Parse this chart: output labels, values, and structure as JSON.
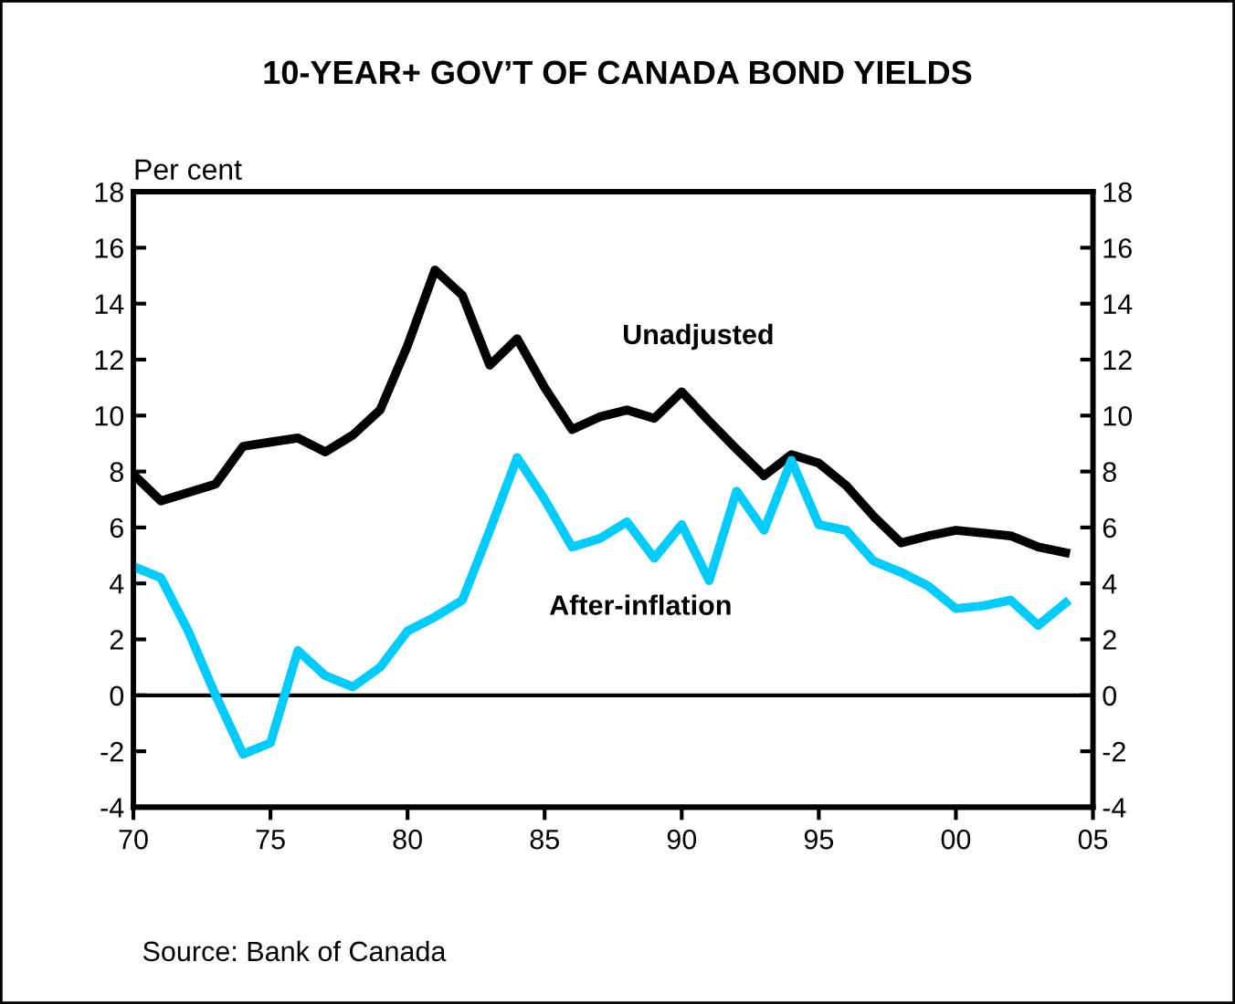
{
  "chart_data": {
    "type": "line",
    "title": "10-YEAR+ GOV’T OF CANADA BOND YIELDS",
    "ylabel": "Per cent",
    "x": [
      1970,
      1971,
      1972,
      1973,
      1974,
      1975,
      1976,
      1977,
      1978,
      1979,
      1980,
      1981,
      1982,
      1983,
      1984,
      1985,
      1986,
      1987,
      1988,
      1989,
      1990,
      1991,
      1992,
      1993,
      1994,
      1995,
      1996,
      1997,
      1998,
      1999,
      2000,
      2001,
      2002,
      2003,
      2004
    ],
    "series": [
      {
        "name": "Unadjusted",
        "color": "#000000",
        "values": [
          7.9,
          6.95,
          7.25,
          7.55,
          8.9,
          9.05,
          9.2,
          8.7,
          9.3,
          10.2,
          12.5,
          15.2,
          14.3,
          11.8,
          12.75,
          11.0,
          9.5,
          9.95,
          10.2,
          9.9,
          10.85,
          9.8,
          8.8,
          7.85,
          8.6,
          8.3,
          7.5,
          6.4,
          5.45,
          5.7,
          5.9,
          5.8,
          5.7,
          5.3,
          5.1
        ]
      },
      {
        "name": "After-inflation",
        "color": "#00ccff",
        "values": [
          4.6,
          4.2,
          2.3,
          0.0,
          -2.1,
          -1.7,
          1.6,
          0.7,
          0.3,
          1.0,
          2.3,
          2.8,
          3.4,
          5.9,
          8.5,
          7.0,
          5.3,
          5.6,
          6.2,
          4.9,
          6.1,
          4.1,
          7.3,
          5.9,
          8.4,
          6.1,
          5.9,
          4.8,
          4.4,
          3.9,
          3.1,
          3.2,
          3.4,
          2.5,
          3.3
        ]
      }
    ],
    "xlim": [
      1970,
      2005
    ],
    "xticks": [
      {
        "value": 1970,
        "label": "70"
      },
      {
        "value": 1975,
        "label": "75"
      },
      {
        "value": 1980,
        "label": "80"
      },
      {
        "value": 1985,
        "label": "85"
      },
      {
        "value": 1990,
        "label": "90"
      },
      {
        "value": 1995,
        "label": "95"
      },
      {
        "value": 2000,
        "label": "00"
      },
      {
        "value": 2005,
        "label": "05"
      }
    ],
    "ylim": [
      -4,
      18
    ],
    "yticks": [
      -4,
      -2,
      0,
      2,
      4,
      6,
      8,
      10,
      12,
      14,
      16,
      18
    ],
    "y2lim": [
      -4,
      18
    ],
    "y2ticks": [
      -4,
      -2,
      0,
      2,
      4,
      6,
      8,
      10,
      12,
      14,
      16,
      18
    ],
    "ref_lines": [
      {
        "axis": "y",
        "value": 0,
        "color": "#000000"
      }
    ],
    "annotations": [
      "Source: Bank of Canada"
    ],
    "grid": false,
    "legend": false,
    "marker": "none",
    "line_style": "solid"
  }
}
